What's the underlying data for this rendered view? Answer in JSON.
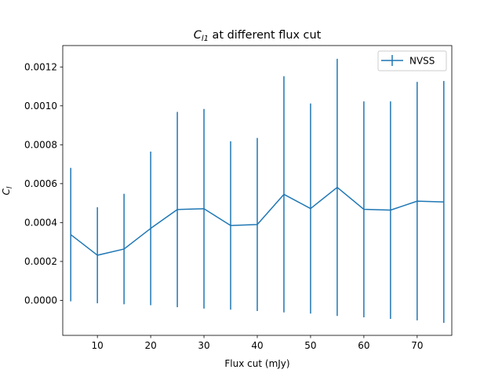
{
  "chart_data": {
    "type": "line",
    "title_main": "C",
    "title_sub": "l1",
    "title_rest": " at different flux cut",
    "xlabel": "Flux cut (mJy)",
    "ylabel_main": "C",
    "ylabel_sub": "l",
    "xlim": [
      3.5,
      76.5
    ],
    "ylim": [
      -0.00018,
      0.00131
    ],
    "xticks": [
      10,
      20,
      30,
      40,
      50,
      60,
      70
    ],
    "xtick_labels": [
      "10",
      "20",
      "30",
      "40",
      "50",
      "60",
      "70"
    ],
    "yticks": [
      0.0,
      0.0002,
      0.0004,
      0.0006,
      0.0008,
      0.001,
      0.0012
    ],
    "ytick_labels": [
      "0.0000",
      "0.0002",
      "0.0004",
      "0.0006",
      "0.0008",
      "0.0010",
      "0.0012"
    ],
    "grid": false,
    "legend_position": "top-right",
    "series": [
      {
        "name": "NVSS",
        "color": "#1f77b4",
        "x": [
          5,
          10,
          15,
          20,
          25,
          30,
          35,
          40,
          45,
          50,
          55,
          60,
          65,
          70,
          75
        ],
        "y": [
          0.000338,
          0.000232,
          0.000264,
          0.00037,
          0.000467,
          0.000471,
          0.000385,
          0.00039,
          0.000545,
          0.000472,
          0.000581,
          0.000468,
          0.000464,
          0.00051,
          0.000506
        ],
        "yerr": [
          0.000343,
          0.000247,
          0.000284,
          0.000395,
          0.000502,
          0.000513,
          0.000433,
          0.000445,
          0.000607,
          0.00054,
          0.000661,
          0.000555,
          0.000559,
          0.000613,
          0.000622
        ]
      }
    ]
  }
}
